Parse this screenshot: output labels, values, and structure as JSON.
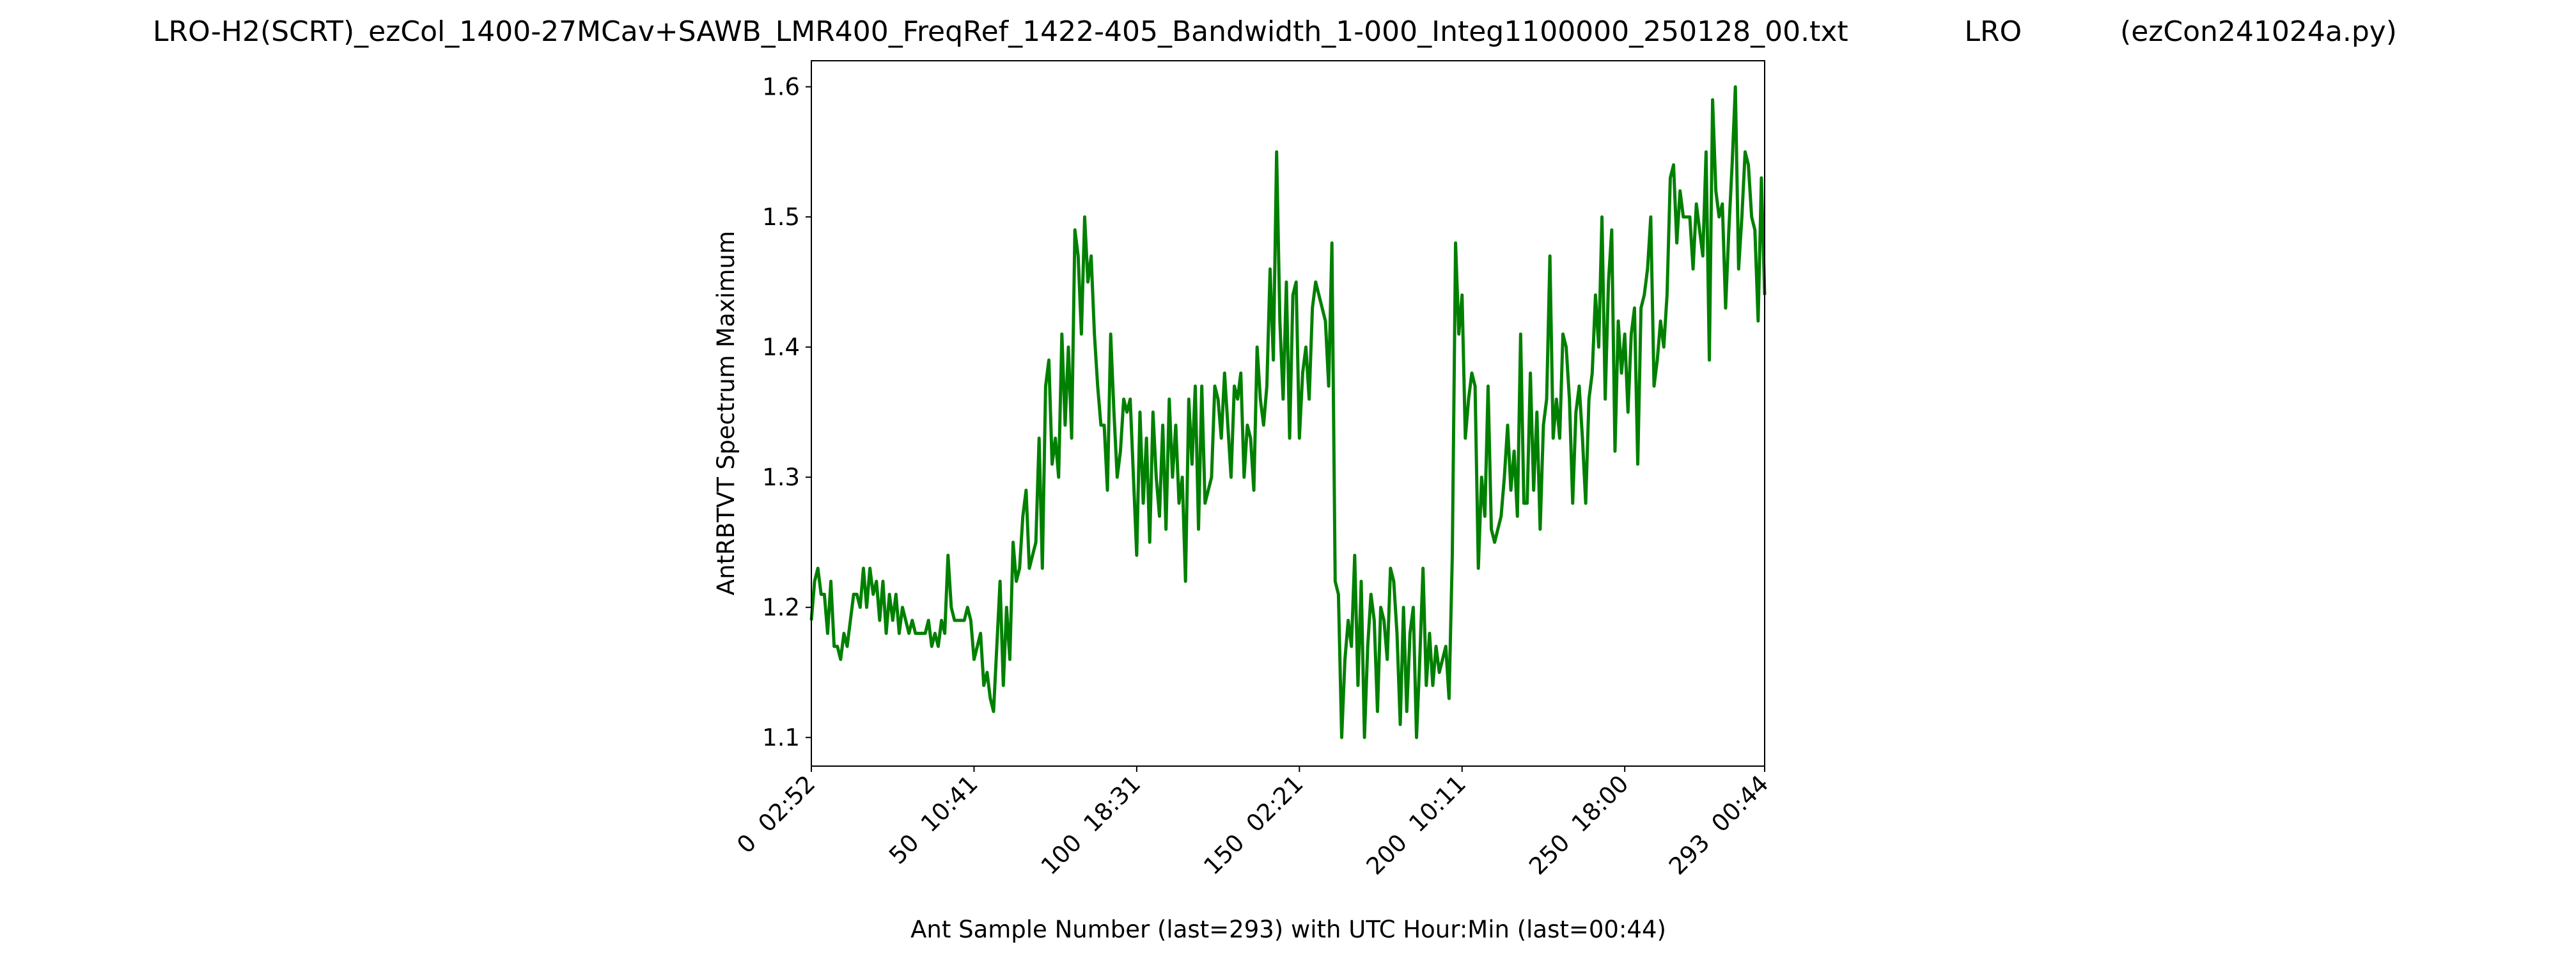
{
  "chart_data": {
    "type": "line",
    "title": "LRO-H2(SCRT)_ezCol_1400-27MCav+SAWB_LMR400_FreqRef_1422-405_Bandwidth_1-000_Integ1100000_250128_00.txt             LRO           (ezCon241024a.py)",
    "x_label": "Ant Sample Number (last=293) with UTC Hour:Min (last=00:44)",
    "y_label": "AntRBTVT Spectrum Maximum",
    "xlim": [
      0,
      293
    ],
    "xticks": [
      {
        "value": 0,
        "label": "0  02:52"
      },
      {
        "value": 50,
        "label": "50  10:41"
      },
      {
        "value": 100,
        "label": "100  18:31"
      },
      {
        "value": 150,
        "label": "150  02:21"
      },
      {
        "value": 200,
        "label": "200  10:11"
      },
      {
        "value": 250,
        "label": "250  18:00"
      },
      {
        "value": 293,
        "label": "293  00:44"
      }
    ],
    "ylim": [
      1.078,
      1.62
    ],
    "yticks": [
      1.1,
      1.2,
      1.3,
      1.4,
      1.5,
      1.6
    ],
    "grid": false,
    "series": [
      {
        "color": "#008000",
        "values": [
          1.19,
          1.22,
          1.23,
          1.21,
          1.21,
          1.18,
          1.22,
          1.17,
          1.17,
          1.16,
          1.18,
          1.17,
          1.19,
          1.21,
          1.21,
          1.2,
          1.23,
          1.2,
          1.23,
          1.21,
          1.22,
          1.19,
          1.22,
          1.18,
          1.21,
          1.19,
          1.21,
          1.18,
          1.2,
          1.19,
          1.18,
          1.19,
          1.18,
          1.18,
          1.18,
          1.18,
          1.19,
          1.17,
          1.18,
          1.17,
          1.19,
          1.18,
          1.24,
          1.2,
          1.19,
          1.19,
          1.19,
          1.19,
          1.2,
          1.19,
          1.16,
          1.17,
          1.18,
          1.14,
          1.15,
          1.13,
          1.12,
          1.17,
          1.22,
          1.14,
          1.2,
          1.16,
          1.25,
          1.22,
          1.23,
          1.27,
          1.29,
          1.23,
          1.24,
          1.25,
          1.33,
          1.23,
          1.37,
          1.39,
          1.31,
          1.33,
          1.3,
          1.41,
          1.34,
          1.4,
          1.33,
          1.49,
          1.47,
          1.41,
          1.5,
          1.45,
          1.47,
          1.41,
          1.37,
          1.34,
          1.34,
          1.29,
          1.41,
          1.35,
          1.3,
          1.32,
          1.36,
          1.35,
          1.36,
          1.3,
          1.24,
          1.35,
          1.28,
          1.33,
          1.25,
          1.35,
          1.3,
          1.27,
          1.34,
          1.26,
          1.36,
          1.3,
          1.34,
          1.28,
          1.3,
          1.22,
          1.36,
          1.31,
          1.37,
          1.26,
          1.37,
          1.28,
          1.29,
          1.3,
          1.37,
          1.36,
          1.33,
          1.38,
          1.34,
          1.3,
          1.37,
          1.36,
          1.38,
          1.3,
          1.34,
          1.33,
          1.29,
          1.4,
          1.36,
          1.34,
          1.37,
          1.46,
          1.39,
          1.55,
          1.42,
          1.36,
          1.45,
          1.33,
          1.44,
          1.45,
          1.33,
          1.38,
          1.4,
          1.36,
          1.43,
          1.45,
          1.44,
          1.43,
          1.42,
          1.37,
          1.48,
          1.22,
          1.21,
          1.1,
          1.16,
          1.19,
          1.17,
          1.24,
          1.14,
          1.22,
          1.1,
          1.17,
          1.21,
          1.19,
          1.12,
          1.2,
          1.19,
          1.16,
          1.23,
          1.22,
          1.18,
          1.11,
          1.2,
          1.12,
          1.18,
          1.2,
          1.1,
          1.16,
          1.23,
          1.14,
          1.18,
          1.14,
          1.17,
          1.15,
          1.16,
          1.17,
          1.13,
          1.24,
          1.48,
          1.41,
          1.44,
          1.33,
          1.36,
          1.38,
          1.37,
          1.23,
          1.3,
          1.27,
          1.37,
          1.26,
          1.25,
          1.26,
          1.27,
          1.3,
          1.34,
          1.29,
          1.32,
          1.27,
          1.41,
          1.28,
          1.28,
          1.38,
          1.29,
          1.35,
          1.26,
          1.34,
          1.36,
          1.47,
          1.33,
          1.36,
          1.33,
          1.41,
          1.4,
          1.36,
          1.28,
          1.35,
          1.37,
          1.33,
          1.28,
          1.36,
          1.38,
          1.44,
          1.4,
          1.5,
          1.36,
          1.45,
          1.49,
          1.32,
          1.42,
          1.38,
          1.41,
          1.35,
          1.41,
          1.43,
          1.31,
          1.43,
          1.44,
          1.46,
          1.5,
          1.37,
          1.39,
          1.42,
          1.4,
          1.44,
          1.53,
          1.54,
          1.48,
          1.52,
          1.5,
          1.5,
          1.5,
          1.46,
          1.51,
          1.49,
          1.47,
          1.55,
          1.39,
          1.59,
          1.52,
          1.5,
          1.51,
          1.43,
          1.49,
          1.54,
          1.6,
          1.46,
          1.5,
          1.55,
          1.54,
          1.5,
          1.49,
          1.42,
          1.53,
          1.44
        ]
      }
    ]
  }
}
